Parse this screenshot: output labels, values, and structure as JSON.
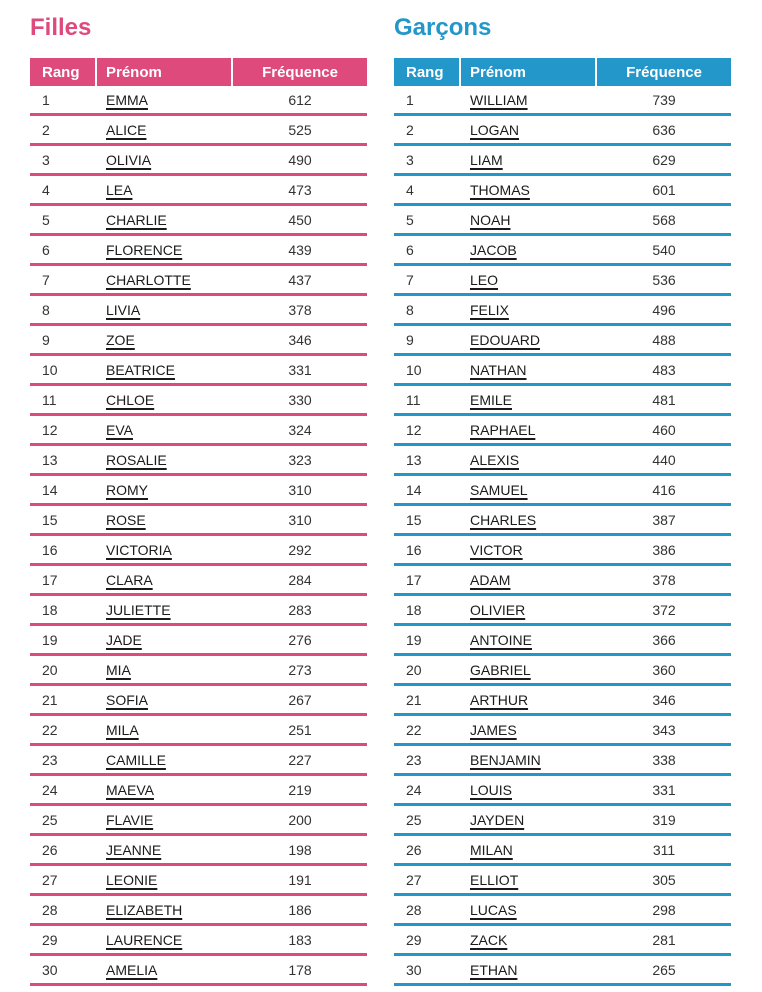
{
  "tables": [
    {
      "title": "Filles",
      "accent": "#df4a7c",
      "headers": [
        "Rang",
        "Prénom",
        "Fréquence"
      ],
      "rows": [
        [
          1,
          "EMMA",
          612
        ],
        [
          2,
          "ALICE",
          525
        ],
        [
          3,
          "OLIVIA",
          490
        ],
        [
          4,
          "LEA",
          473
        ],
        [
          5,
          "CHARLIE",
          450
        ],
        [
          6,
          "FLORENCE",
          439
        ],
        [
          7,
          "CHARLOTTE",
          437
        ],
        [
          8,
          "LIVIA",
          378
        ],
        [
          9,
          "ZOE",
          346
        ],
        [
          10,
          "BEATRICE",
          331
        ],
        [
          11,
          "CHLOE",
          330
        ],
        [
          12,
          "EVA",
          324
        ],
        [
          13,
          "ROSALIE",
          323
        ],
        [
          14,
          "ROMY",
          310
        ],
        [
          15,
          "ROSE",
          310
        ],
        [
          16,
          "VICTORIA",
          292
        ],
        [
          17,
          "CLARA",
          284
        ],
        [
          18,
          "JULIETTE",
          283
        ],
        [
          19,
          "JADE",
          276
        ],
        [
          20,
          "MIA",
          273
        ],
        [
          21,
          "SOFIA",
          267
        ],
        [
          22,
          "MILA",
          251
        ],
        [
          23,
          "CAMILLE",
          227
        ],
        [
          24,
          "MAEVA",
          219
        ],
        [
          25,
          "FLAVIE",
          200
        ],
        [
          26,
          "JEANNE",
          198
        ],
        [
          27,
          "LEONIE",
          191
        ],
        [
          28,
          "ELIZABETH",
          186
        ],
        [
          29,
          "LAURENCE",
          183
        ],
        [
          30,
          "AMELIA",
          178
        ]
      ]
    },
    {
      "title": "Garçons",
      "accent": "#2397c9",
      "headers": [
        "Rang",
        "Prénom",
        "Fréquence"
      ],
      "rows": [
        [
          1,
          "WILLIAM",
          739
        ],
        [
          2,
          "LOGAN",
          636
        ],
        [
          3,
          "LIAM",
          629
        ],
        [
          4,
          "THOMAS",
          601
        ],
        [
          5,
          "NOAH",
          568
        ],
        [
          6,
          "JACOB",
          540
        ],
        [
          7,
          "LEO",
          536
        ],
        [
          8,
          "FELIX",
          496
        ],
        [
          9,
          "EDOUARD",
          488
        ],
        [
          10,
          "NATHAN",
          483
        ],
        [
          11,
          "EMILE",
          481
        ],
        [
          12,
          "RAPHAEL",
          460
        ],
        [
          13,
          "ALEXIS",
          440
        ],
        [
          14,
          "SAMUEL",
          416
        ],
        [
          15,
          "CHARLES",
          387
        ],
        [
          16,
          "VICTOR",
          386
        ],
        [
          17,
          "ADAM",
          378
        ],
        [
          18,
          "OLIVIER",
          372
        ],
        [
          19,
          "ANTOINE",
          366
        ],
        [
          20,
          "GABRIEL",
          360
        ],
        [
          21,
          "ARTHUR",
          346
        ],
        [
          22,
          "JAMES",
          343
        ],
        [
          23,
          "BENJAMIN",
          338
        ],
        [
          24,
          "LOUIS",
          331
        ],
        [
          25,
          "JAYDEN",
          319
        ],
        [
          26,
          "MILAN",
          311
        ],
        [
          27,
          "ELLIOT",
          305
        ],
        [
          28,
          "LUCAS",
          298
        ],
        [
          29,
          "ZACK",
          281
        ],
        [
          30,
          "ETHAN",
          265
        ]
      ]
    }
  ]
}
